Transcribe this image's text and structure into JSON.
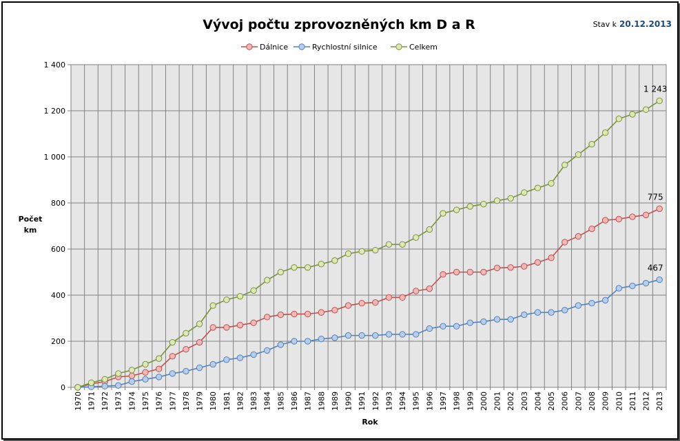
{
  "chart_data": {
    "type": "line",
    "title": "Vývoj počtu zprovozněných km D a R",
    "status": {
      "label": "Stav k",
      "date": "20.12.2013"
    },
    "xlabel": "Rok",
    "ylabel_lines": [
      "Počet",
      "km"
    ],
    "ylim": [
      0,
      1400
    ],
    "yticks": [
      0,
      200,
      400,
      600,
      800,
      1000,
      1200,
      1400
    ],
    "ytick_labels": [
      "0",
      "200",
      "400",
      "600",
      "800",
      "1 000",
      "1 200",
      "1 400"
    ],
    "grid": true,
    "legend_position": "top",
    "x": [
      "1970",
      "1971",
      "1972",
      "1973",
      "1974",
      "1975",
      "1976",
      "1977",
      "1978",
      "1979",
      "1980",
      "1981",
      "1982",
      "1983",
      "1984",
      "1985",
      "1986",
      "1987",
      "1988",
      "1989",
      "1990",
      "1991",
      "1992",
      "1993",
      "1994",
      "1995",
      "1996",
      "1997",
      "1998",
      "1999",
      "2000",
      "2001",
      "2002",
      "2003",
      "2004",
      "2005",
      "2006",
      "2007",
      "2008",
      "2009",
      "2010",
      "2011",
      "2012",
      "2013"
    ],
    "series": [
      {
        "name": "Dálnice",
        "line_color": "#c0504d",
        "marker_fill": "#f2b8b7",
        "end_label": "775",
        "values": [
          0,
          15,
          25,
          45,
          50,
          65,
          80,
          135,
          165,
          195,
          260,
          260,
          270,
          280,
          305,
          315,
          318,
          318,
          325,
          335,
          355,
          365,
          368,
          390,
          390,
          418,
          428,
          490,
          500,
          500,
          500,
          518,
          520,
          525,
          542,
          562,
          630,
          655,
          688,
          725,
          730,
          740,
          748,
          775
        ]
      },
      {
        "name": "Rychlostní silnice",
        "line_color": "#4f81bd",
        "marker_fill": "#b9cdeb",
        "end_label": "467",
        "values": [
          0,
          2,
          5,
          8,
          25,
          35,
          45,
          60,
          70,
          85,
          100,
          120,
          128,
          142,
          160,
          185,
          200,
          200,
          210,
          215,
          225,
          225,
          225,
          230,
          230,
          230,
          255,
          265,
          265,
          280,
          285,
          295,
          295,
          315,
          325,
          325,
          335,
          355,
          365,
          378,
          430,
          440,
          452,
          467
        ]
      },
      {
        "name": "Celkem",
        "line_color": "#77933c",
        "marker_fill": "#dde8b6",
        "end_label": "1 243",
        "values": [
          0,
          20,
          35,
          60,
          75,
          100,
          125,
          195,
          235,
          275,
          355,
          380,
          395,
          420,
          465,
          500,
          520,
          520,
          535,
          550,
          580,
          590,
          595,
          620,
          620,
          650,
          685,
          755,
          770,
          785,
          795,
          810,
          820,
          845,
          865,
          885,
          965,
          1010,
          1055,
          1105,
          1165,
          1185,
          1205,
          1243
        ]
      }
    ]
  }
}
